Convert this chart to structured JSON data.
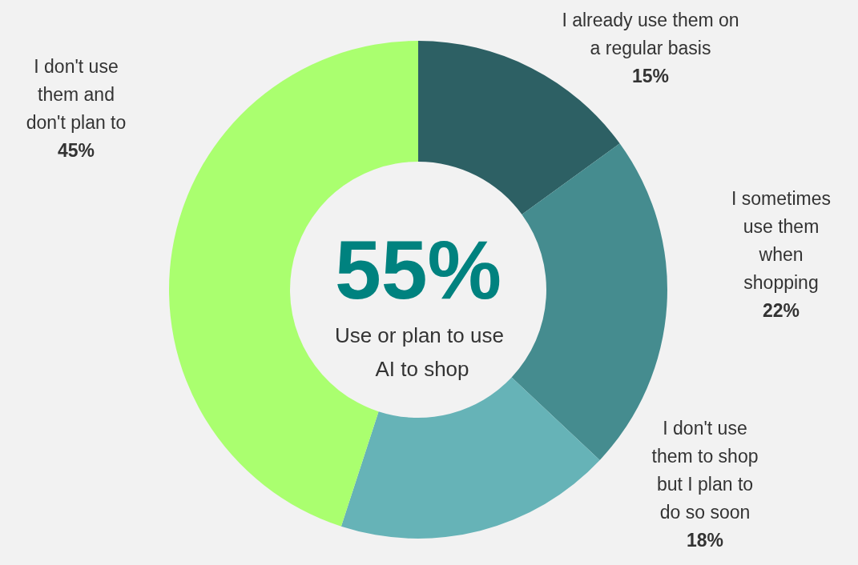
{
  "chart_data": {
    "type": "donut",
    "categories": [
      "I already use them on a regular basis",
      "I sometimes use them when shopping",
      "I don't use them to shop but I plan to do so soon",
      "I don't use them and don't plan to"
    ],
    "values": [
      15,
      22,
      18,
      45
    ],
    "value_labels": [
      "15%",
      "22%",
      "18%",
      "45%"
    ],
    "colors": [
      "#2d6064",
      "#458c8f",
      "#66b3b7",
      "#aaff6f"
    ],
    "annotations": [
      "55%",
      "Use or plan to use AI to shop"
    ],
    "legend": false
  }
}
